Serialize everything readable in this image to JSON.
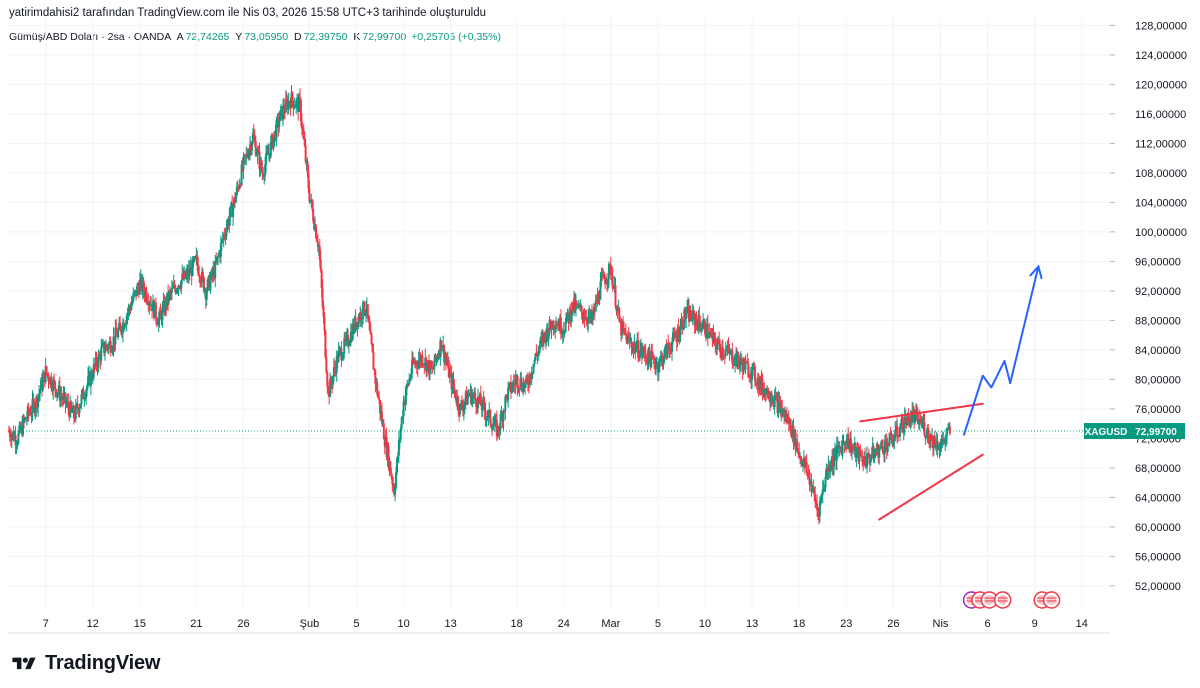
{
  "header": {
    "attribution": "yatirimdahisi2 tarafından TradingView.com ile Nis 03, 2026 15:58 UTC+3 tarihinde oluşturuldu"
  },
  "symbol": {
    "name": "Gümüş/ABD Doları · 2sa · OANDA",
    "open_label": "A",
    "open": "72,74265",
    "high_label": "Y",
    "high": "73,05950",
    "low_label": "D",
    "low": "72,39750",
    "close_label": "K",
    "close": "72,99700",
    "change": "+0,25705 (+0,35%)"
  },
  "brand": {
    "name": "TradingView"
  },
  "colors": {
    "up": "#089981",
    "down": "#f23645",
    "drawing_red": "#f23645",
    "drawing_blue": "#2962ff",
    "grid": "#f0f3fa",
    "axis_text": "#131722"
  },
  "chart_data": {
    "type": "candlestick",
    "symbol": "XAGUSD",
    "last_price": 72.997,
    "last_price_label": "72,99700",
    "ylim": [
      49.0,
      129.0
    ],
    "y_ticks": [
      52,
      56,
      60,
      64,
      68,
      72,
      76,
      80,
      84,
      88,
      92,
      96,
      100,
      104,
      108,
      112,
      116,
      120,
      124,
      128
    ],
    "y_tick_labels": [
      "52,00000",
      "56,00000",
      "60,00000",
      "64,00000",
      "68,00000",
      "72,00000",
      "76,00000",
      "80,00000",
      "84,00000",
      "88,00000",
      "92,00000",
      "96,00000",
      "100,00000",
      "104,00000",
      "108,00000",
      "112,00000",
      "116,00000",
      "120,00000",
      "124,00000",
      "128,00000"
    ],
    "x_range": [
      0,
      108
    ],
    "x_ticks": [
      {
        "x": 4,
        "label": "7"
      },
      {
        "x": 9,
        "label": "12"
      },
      {
        "x": 14,
        "label": "15"
      },
      {
        "x": 20,
        "label": "21"
      },
      {
        "x": 25,
        "label": "26"
      },
      {
        "x": 32,
        "label": "Şub"
      },
      {
        "x": 37,
        "label": "5"
      },
      {
        "x": 42,
        "label": "10"
      },
      {
        "x": 47,
        "label": "13"
      },
      {
        "x": 54,
        "label": "18"
      },
      {
        "x": 59,
        "label": "24"
      },
      {
        "x": 64,
        "label": "Mar"
      },
      {
        "x": 69,
        "label": "5"
      },
      {
        "x": 74,
        "label": "10"
      },
      {
        "x": 79,
        "label": "13"
      },
      {
        "x": 84,
        "label": "18"
      },
      {
        "x": 89,
        "label": "23"
      },
      {
        "x": 94,
        "label": "26"
      },
      {
        "x": 99,
        "label": "Nis"
      },
      {
        "x": 104,
        "label": "6"
      },
      {
        "x": 109,
        "label": "9"
      },
      {
        "x": 114,
        "label": "14"
      }
    ],
    "price_path": [
      [
        0,
        73
      ],
      [
        1,
        72
      ],
      [
        2,
        75
      ],
      [
        3,
        77
      ],
      [
        4,
        81
      ],
      [
        5,
        79
      ],
      [
        6,
        77
      ],
      [
        7,
        75
      ],
      [
        8,
        78
      ],
      [
        9,
        81
      ],
      [
        10,
        84
      ],
      [
        11,
        85
      ],
      [
        12,
        87
      ],
      [
        13,
        90
      ],
      [
        14,
        93
      ],
      [
        15,
        91
      ],
      [
        16,
        88
      ],
      [
        17,
        91
      ],
      [
        18,
        93
      ],
      [
        19,
        94
      ],
      [
        20,
        96
      ],
      [
        21,
        92
      ],
      [
        22,
        95
      ],
      [
        23,
        100
      ],
      [
        24,
        104
      ],
      [
        25,
        109
      ],
      [
        26,
        113
      ],
      [
        27,
        108
      ],
      [
        28,
        112
      ],
      [
        29,
        116
      ],
      [
        30,
        118
      ],
      [
        31,
        117
      ],
      [
        32,
        105
      ],
      [
        33,
        98
      ],
      [
        34,
        78
      ],
      [
        35,
        83
      ],
      [
        36,
        85
      ],
      [
        37,
        88
      ],
      [
        38,
        90
      ],
      [
        39,
        80
      ],
      [
        40,
        72
      ],
      [
        41,
        65
      ],
      [
        42,
        77
      ],
      [
        43,
        82
      ],
      [
        44,
        83
      ],
      [
        45,
        81
      ],
      [
        46,
        85
      ],
      [
        47,
        80
      ],
      [
        48,
        76
      ],
      [
        49,
        78
      ],
      [
        50,
        77
      ],
      [
        51,
        75
      ],
      [
        52,
        73
      ],
      [
        53,
        78
      ],
      [
        54,
        80
      ],
      [
        55,
        79
      ],
      [
        56,
        83
      ],
      [
        57,
        86
      ],
      [
        58,
        88
      ],
      [
        59,
        87
      ],
      [
        60,
        90
      ],
      [
        61,
        89
      ],
      [
        62,
        88
      ],
      [
        63,
        93
      ],
      [
        64,
        95
      ],
      [
        65,
        87
      ],
      [
        66,
        85
      ],
      [
        67,
        84
      ],
      [
        68,
        83
      ],
      [
        69,
        82
      ],
      [
        70,
        84
      ],
      [
        71,
        86
      ],
      [
        72,
        89
      ],
      [
        73,
        88
      ],
      [
        74,
        87
      ],
      [
        75,
        85
      ],
      [
        76,
        84
      ],
      [
        77,
        83
      ],
      [
        78,
        82
      ],
      [
        79,
        81
      ],
      [
        80,
        79
      ],
      [
        81,
        78
      ],
      [
        82,
        76
      ],
      [
        83,
        74
      ],
      [
        84,
        70
      ],
      [
        85,
        67
      ],
      [
        86,
        62
      ],
      [
        87,
        68
      ],
      [
        88,
        70
      ],
      [
        89,
        72
      ],
      [
        90,
        70
      ],
      [
        91,
        69
      ],
      [
        92,
        70
      ],
      [
        93,
        71
      ],
      [
        94,
        72
      ],
      [
        95,
        74
      ],
      [
        96,
        75
      ],
      [
        97,
        74
      ],
      [
        98,
        72
      ],
      [
        99,
        71
      ],
      [
        100,
        73
      ]
    ],
    "drawings": [
      {
        "kind": "trendline",
        "name": "wedge-upper-line",
        "color": "#f23645",
        "from": [
          90.5,
          74.3
        ],
        "to": [
          103.5,
          76.7
        ]
      },
      {
        "kind": "trendline",
        "name": "wedge-lower-line",
        "color": "#f23645",
        "from": [
          92.5,
          61.0
        ],
        "to": [
          103.5,
          69.8
        ]
      },
      {
        "kind": "forecast",
        "name": "forecast-arrow",
        "color": "#2962ff",
        "points": [
          [
            101.5,
            72.5
          ],
          [
            103.5,
            80.5
          ],
          [
            104.4,
            78.9
          ],
          [
            105.8,
            82.5
          ],
          [
            106.4,
            79.5
          ],
          [
            109.4,
            95.3
          ]
        ]
      }
    ],
    "events": [
      {
        "x": 102.3,
        "kind": "earnings"
      },
      {
        "x": 103.2,
        "kind": "economic"
      },
      {
        "x": 104.2,
        "kind": "economic"
      },
      {
        "x": 105.6,
        "kind": "economic"
      },
      {
        "x": 109.8,
        "kind": "economic"
      },
      {
        "x": 110.8,
        "kind": "economic"
      }
    ]
  }
}
